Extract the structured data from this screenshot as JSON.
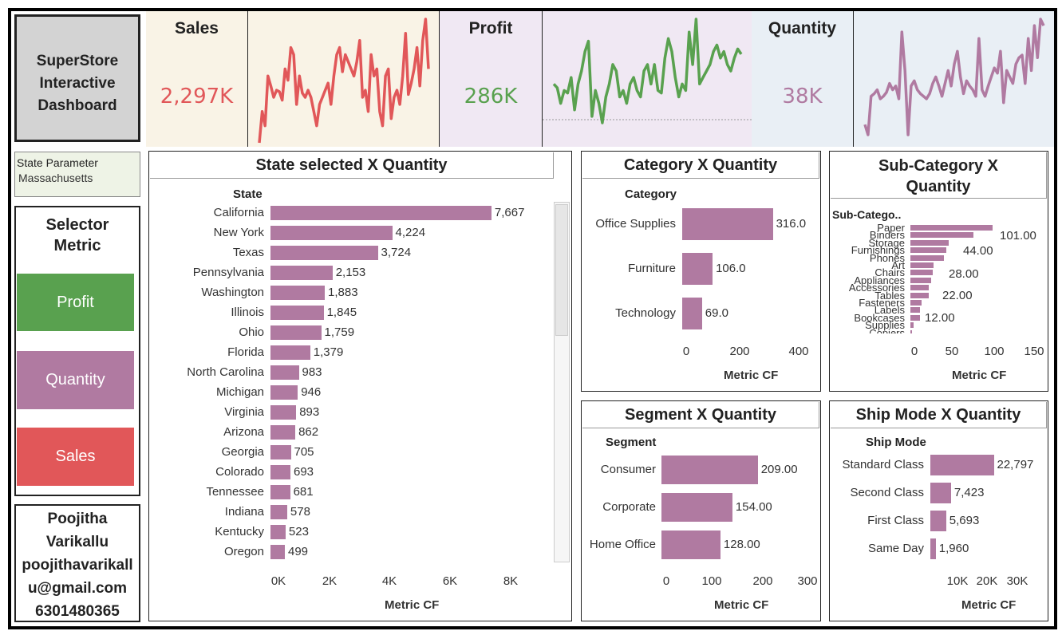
{
  "title_box": {
    "line1": "SuperStore",
    "line2": "Interactive",
    "line3": "Dashboard"
  },
  "kpis": {
    "sales": {
      "label": "Sales",
      "value": "2,297K",
      "color": "#e15759",
      "bg": "#f9f3e6"
    },
    "profit": {
      "label": "Profit",
      "value": "286K",
      "color": "#59a14f",
      "bg": "#f0e8f3"
    },
    "quantity": {
      "label": "Quantity",
      "value": "38K",
      "color": "#b07aa1",
      "bg": "#e9eff5"
    }
  },
  "sparklines": {
    "sales": [
      8,
      30,
      20,
      55,
      48,
      40,
      45,
      44,
      38,
      60,
      52,
      75,
      70,
      35,
      55,
      43,
      40,
      45,
      40,
      30,
      20,
      35,
      40,
      45,
      50,
      35,
      55,
      70,
      75,
      58,
      70,
      65,
      60,
      55,
      65,
      80,
      40,
      45,
      30,
      70,
      55,
      60,
      30,
      20,
      55,
      60,
      25,
      40,
      45,
      35,
      55,
      85,
      42,
      50,
      60,
      75,
      48,
      80,
      95,
      60
    ],
    "profit": [
      45,
      42,
      30,
      40,
      38,
      50,
      25,
      45,
      55,
      70,
      78,
      20,
      40,
      30,
      15,
      35,
      45,
      60,
      55,
      35,
      40,
      30,
      45,
      50,
      40,
      35,
      55,
      60,
      45,
      60,
      40,
      38,
      65,
      80,
      70,
      50,
      35,
      45,
      40,
      85,
      60,
      95,
      45,
      50,
      55,
      60,
      70,
      75,
      65,
      70,
      60,
      55,
      65,
      72,
      68
    ],
    "quantity": [
      18,
      10,
      40,
      42,
      45,
      38,
      40,
      43,
      50,
      45,
      48,
      38,
      90,
      60,
      10,
      48,
      52,
      45,
      42,
      40,
      38,
      42,
      50,
      55,
      48,
      40,
      50,
      60,
      48,
      65,
      75,
      55,
      42,
      52,
      48,
      45,
      40,
      85,
      45,
      40,
      48,
      55,
      62,
      58,
      75,
      35,
      60,
      55,
      50,
      65,
      70,
      72,
      50,
      85,
      60,
      95,
      70,
      100,
      95
    ]
  },
  "state_param": {
    "label": "State Parameter",
    "value": "Massachusetts"
  },
  "selector": {
    "title_line1": "Selector",
    "title_line2": "Metric",
    "options": [
      "Profit",
      "Quantity",
      "Sales"
    ]
  },
  "author": {
    "line1": "Poojitha",
    "line2": "Varikallu",
    "line3": "poojithavarikall",
    "line4": "u@gmail.com",
    "line5": "6301480365"
  },
  "state_chart": {
    "title": "State selected X Quantity",
    "header": "State",
    "axis_title": "Metric CF",
    "ticks": [
      "0K",
      "2K",
      "4K",
      "6K",
      "8K"
    ],
    "max": 9000,
    "rows": [
      {
        "label": "California",
        "value": 7667,
        "display": "7,667"
      },
      {
        "label": "New York",
        "value": 4224,
        "display": "4,224"
      },
      {
        "label": "Texas",
        "value": 3724,
        "display": "3,724"
      },
      {
        "label": "Pennsylvania",
        "value": 2153,
        "display": "2,153"
      },
      {
        "label": "Washington",
        "value": 1883,
        "display": "1,883"
      },
      {
        "label": "Illinois",
        "value": 1845,
        "display": "1,845"
      },
      {
        "label": "Ohio",
        "value": 1759,
        "display": "1,759"
      },
      {
        "label": "Florida",
        "value": 1379,
        "display": "1,379"
      },
      {
        "label": "North Carolina",
        "value": 983,
        "display": "983"
      },
      {
        "label": "Michigan",
        "value": 946,
        "display": "946"
      },
      {
        "label": "Virginia",
        "value": 893,
        "display": "893"
      },
      {
        "label": "Arizona",
        "value": 862,
        "display": "862"
      },
      {
        "label": "Georgia",
        "value": 705,
        "display": "705"
      },
      {
        "label": "Colorado",
        "value": 693,
        "display": "693"
      },
      {
        "label": "Tennessee",
        "value": 681,
        "display": "681"
      },
      {
        "label": "Indiana",
        "value": 578,
        "display": "578"
      },
      {
        "label": "Kentucky",
        "value": 523,
        "display": "523"
      },
      {
        "label": "Oregon",
        "value": 499,
        "display": "499"
      }
    ]
  },
  "category_chart": {
    "title": "Category X Quantity",
    "header": "Category",
    "axis_title": "Metric CF",
    "ticks": [
      "0",
      "200",
      "400"
    ],
    "max": 420,
    "rows": [
      {
        "label": "Office Supplies",
        "value": 316,
        "display": "316.0"
      },
      {
        "label": "Furniture",
        "value": 106,
        "display": "106.0"
      },
      {
        "label": "Technology",
        "value": 69,
        "display": "69.0"
      }
    ]
  },
  "subcat_chart": {
    "title_line1": "Sub-Category X",
    "title_line2": "Quantity",
    "header": "Sub-Catego..",
    "axis_title": "Metric CF",
    "ticks": [
      "0",
      "50",
      "100",
      "150"
    ],
    "max": 165,
    "rows": [
      {
        "label": "Paper",
        "value": 101
      },
      {
        "label": "Binders",
        "value": 77
      },
      {
        "label": "Storage",
        "value": 47
      },
      {
        "label": "Furnishings",
        "value": 44
      },
      {
        "label": "Phones",
        "value": 41
      },
      {
        "label": "Art",
        "value": 28
      },
      {
        "label": "Chairs",
        "value": 27
      },
      {
        "label": "Appliances",
        "value": 25
      },
      {
        "label": "Accessories",
        "value": 22
      },
      {
        "label": "Tables",
        "value": 22
      },
      {
        "label": "Fasteners",
        "value": 14
      },
      {
        "label": "Labels",
        "value": 12
      },
      {
        "label": "Bookcases",
        "value": 12
      },
      {
        "label": "Supplies",
        "value": 4
      },
      {
        "label": "Copiers",
        "value": 2
      }
    ],
    "data_labels": [
      "101.00",
      "44.00",
      "28.00",
      "22.00",
      "12.00"
    ]
  },
  "segment_chart": {
    "title": "Segment X Quantity",
    "header": "Segment",
    "axis_title": "Metric CF",
    "ticks": [
      "0",
      "100",
      "200",
      "300"
    ],
    "max": 310,
    "rows": [
      {
        "label": "Consumer",
        "value": 209,
        "display": "209.00"
      },
      {
        "label": "Corporate",
        "value": 154,
        "display": "154.00"
      },
      {
        "label": "Home Office",
        "value": 128,
        "display": "128.00"
      }
    ]
  },
  "shipmode_chart": {
    "title": "Ship Mode X Quantity",
    "header": "Ship Mode",
    "axis_title": "Metric CF",
    "ticks": [
      "10K",
      "20K",
      "30K"
    ],
    "max": 35000,
    "rows": [
      {
        "label": "Standard Class",
        "value": 22797,
        "display": "22,797"
      },
      {
        "label": "Second Class",
        "value": 7423,
        "display": "7,423"
      },
      {
        "label": "First Class",
        "value": 5693,
        "display": "5,693"
      },
      {
        "label": "Same Day",
        "value": 1960,
        "display": "1,960"
      }
    ]
  }
}
